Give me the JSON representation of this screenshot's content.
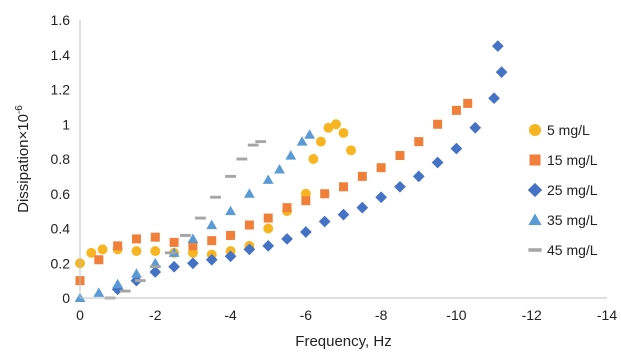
{
  "chart_data": {
    "type": "scatter",
    "title": "",
    "xlabel": "Frequency, Hz",
    "ylabel": "Dissipation×10",
    "ylabel_superscript": "-6",
    "xlim": [
      0,
      -14
    ],
    "ylim": [
      0,
      1.6
    ],
    "x_ticks": [
      0,
      -2,
      -4,
      -6,
      -8,
      -10,
      -12,
      -14
    ],
    "x_tick_labels": [
      "0",
      "-2",
      "-4",
      "-6",
      "-8",
      "-10",
      "-12",
      "-14"
    ],
    "y_ticks": [
      0,
      0.2,
      0.4,
      0.6,
      0.8,
      1,
      1.2,
      1.4,
      1.6
    ],
    "y_tick_labels": [
      "0",
      "0.2",
      "0.4",
      "0.6",
      "0.8",
      "1",
      "1.2",
      "1.4",
      "1.6"
    ],
    "grid": false,
    "legend_position": "right",
    "series": [
      {
        "name": "5 mg/L",
        "marker": "circle",
        "color": "#F7B521",
        "points": [
          [
            0,
            0.2
          ],
          [
            -0.3,
            0.26
          ],
          [
            -0.6,
            0.28
          ],
          [
            -1,
            0.28
          ],
          [
            -1.5,
            0.27
          ],
          [
            -2,
            0.27
          ],
          [
            -2.5,
            0.26
          ],
          [
            -3,
            0.26
          ],
          [
            -3.5,
            0.25
          ],
          [
            -4,
            0.27
          ],
          [
            -4.5,
            0.3
          ],
          [
            -5,
            0.4
          ],
          [
            -5.5,
            0.5
          ],
          [
            -6,
            0.6
          ],
          [
            -6.2,
            0.8
          ],
          [
            -6.4,
            0.9
          ],
          [
            -6.6,
            0.98
          ],
          [
            -6.8,
            1.0
          ],
          [
            -7,
            0.95
          ],
          [
            -7.2,
            0.85
          ]
        ]
      },
      {
        "name": "15 mg/L",
        "marker": "square",
        "color": "#F07F3A",
        "points": [
          [
            0,
            0.1
          ],
          [
            -0.5,
            0.22
          ],
          [
            -1,
            0.3
          ],
          [
            -1.5,
            0.34
          ],
          [
            -2,
            0.35
          ],
          [
            -2.5,
            0.32
          ],
          [
            -3,
            0.3
          ],
          [
            -3.5,
            0.33
          ],
          [
            -4,
            0.36
          ],
          [
            -4.5,
            0.42
          ],
          [
            -5,
            0.46
          ],
          [
            -5.5,
            0.52
          ],
          [
            -6,
            0.56
          ],
          [
            -6.5,
            0.6
          ],
          [
            -7,
            0.64
          ],
          [
            -7.5,
            0.7
          ],
          [
            -8,
            0.75
          ],
          [
            -8.5,
            0.82
          ],
          [
            -9,
            0.9
          ],
          [
            -9.5,
            1.0
          ],
          [
            -10,
            1.08
          ],
          [
            -10.3,
            1.12
          ]
        ]
      },
      {
        "name": "25 mg/L",
        "marker": "diamond",
        "color": "#4472C4",
        "points": [
          [
            -1,
            0.05
          ],
          [
            -1.5,
            0.1
          ],
          [
            -2,
            0.15
          ],
          [
            -2.5,
            0.18
          ],
          [
            -3,
            0.2
          ],
          [
            -3.5,
            0.22
          ],
          [
            -4,
            0.24
          ],
          [
            -4.5,
            0.28
          ],
          [
            -5,
            0.3
          ],
          [
            -5.5,
            0.34
          ],
          [
            -6,
            0.38
          ],
          [
            -6.5,
            0.44
          ],
          [
            -7,
            0.48
          ],
          [
            -7.5,
            0.52
          ],
          [
            -8,
            0.58
          ],
          [
            -8.5,
            0.64
          ],
          [
            -9,
            0.7
          ],
          [
            -9.5,
            0.78
          ],
          [
            -10,
            0.86
          ],
          [
            -10.5,
            0.98
          ],
          [
            -11,
            1.15
          ],
          [
            -11.2,
            1.3
          ],
          [
            -11.1,
            1.45
          ]
        ]
      },
      {
        "name": "35 mg/L",
        "marker": "triangle",
        "color": "#5B9BD5",
        "points": [
          [
            0,
            0.0
          ],
          [
            -0.5,
            0.03
          ],
          [
            -1,
            0.08
          ],
          [
            -1.5,
            0.14
          ],
          [
            -2,
            0.2
          ],
          [
            -2.5,
            0.26
          ],
          [
            -3,
            0.34
          ],
          [
            -3.5,
            0.42
          ],
          [
            -4,
            0.5
          ],
          [
            -4.5,
            0.6
          ],
          [
            -5,
            0.68
          ],
          [
            -5.3,
            0.74
          ],
          [
            -5.6,
            0.82
          ],
          [
            -5.9,
            0.9
          ],
          [
            -6.1,
            0.94
          ]
        ]
      },
      {
        "name": "45 mg/L",
        "marker": "dash",
        "color": "#A5A5A5",
        "points": [
          [
            -0.8,
            0.0
          ],
          [
            -1.2,
            0.04
          ],
          [
            -1.6,
            0.1
          ],
          [
            -2,
            0.18
          ],
          [
            -2.4,
            0.26
          ],
          [
            -2.8,
            0.36
          ],
          [
            -3.2,
            0.46
          ],
          [
            -3.6,
            0.58
          ],
          [
            -4,
            0.7
          ],
          [
            -4.3,
            0.8
          ],
          [
            -4.6,
            0.88
          ],
          [
            -4.8,
            0.9
          ]
        ]
      }
    ]
  }
}
